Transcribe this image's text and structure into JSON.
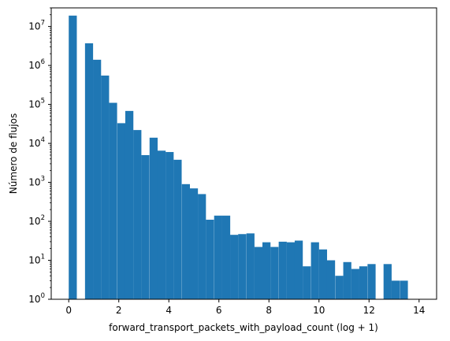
{
  "chart_data": {
    "type": "bar",
    "title": "",
    "xlabel": "forward_transport_packets_with_payload_count (log + 1)",
    "ylabel": "Número de flujos",
    "xlim": [
      -0.7,
      14.7
    ],
    "ylim": [
      1,
      30000000
    ],
    "yscale": "log",
    "grid": false,
    "bar_color": "#1f77b4",
    "bin_width": 0.3226,
    "x_ticks": [
      0,
      2,
      4,
      6,
      8,
      10,
      12,
      14
    ],
    "x_tick_labels": [
      "0",
      "2",
      "4",
      "6",
      "8",
      "10",
      "12",
      "14"
    ],
    "y_ticks": [
      1,
      10,
      100,
      1000,
      10000,
      100000,
      1000000,
      10000000
    ],
    "y_tick_labels": [
      {
        "base": "10",
        "exp": "0"
      },
      {
        "base": "10",
        "exp": "1"
      },
      {
        "base": "10",
        "exp": "2"
      },
      {
        "base": "10",
        "exp": "3"
      },
      {
        "base": "10",
        "exp": "4"
      },
      {
        "base": "10",
        "exp": "5"
      },
      {
        "base": "10",
        "exp": "6"
      },
      {
        "base": "10",
        "exp": "7"
      }
    ],
    "bins": [
      {
        "x": 0.0,
        "count": 19000000
      },
      {
        "x": 0.65,
        "count": 3700000
      },
      {
        "x": 0.97,
        "count": 1400000
      },
      {
        "x": 1.29,
        "count": 550000
      },
      {
        "x": 1.61,
        "count": 110000
      },
      {
        "x": 1.94,
        "count": 33000
      },
      {
        "x": 2.26,
        "count": 68000
      },
      {
        "x": 2.58,
        "count": 22000
      },
      {
        "x": 2.9,
        "count": 5000
      },
      {
        "x": 3.23,
        "count": 14000
      },
      {
        "x": 3.55,
        "count": 6500
      },
      {
        "x": 3.87,
        "count": 6000
      },
      {
        "x": 4.19,
        "count": 3800
      },
      {
        "x": 4.52,
        "count": 900
      },
      {
        "x": 4.84,
        "count": 700
      },
      {
        "x": 5.16,
        "count": 500
      },
      {
        "x": 5.48,
        "count": 110
      },
      {
        "x": 5.81,
        "count": 140
      },
      {
        "x": 6.13,
        "count": 140
      },
      {
        "x": 6.45,
        "count": 45
      },
      {
        "x": 6.77,
        "count": 47
      },
      {
        "x": 7.1,
        "count": 49
      },
      {
        "x": 7.42,
        "count": 22
      },
      {
        "x": 7.74,
        "count": 29
      },
      {
        "x": 8.06,
        "count": 22
      },
      {
        "x": 8.39,
        "count": 30
      },
      {
        "x": 8.71,
        "count": 29
      },
      {
        "x": 9.03,
        "count": 32
      },
      {
        "x": 9.35,
        "count": 7
      },
      {
        "x": 9.68,
        "count": 29
      },
      {
        "x": 10.0,
        "count": 19
      },
      {
        "x": 10.32,
        "count": 10
      },
      {
        "x": 10.65,
        "count": 4
      },
      {
        "x": 10.97,
        "count": 9
      },
      {
        "x": 11.29,
        "count": 6
      },
      {
        "x": 11.61,
        "count": 7
      },
      {
        "x": 11.94,
        "count": 8
      },
      {
        "x": 12.58,
        "count": 8
      },
      {
        "x": 12.9,
        "count": 3
      },
      {
        "x": 13.23,
        "count": 3
      }
    ]
  }
}
